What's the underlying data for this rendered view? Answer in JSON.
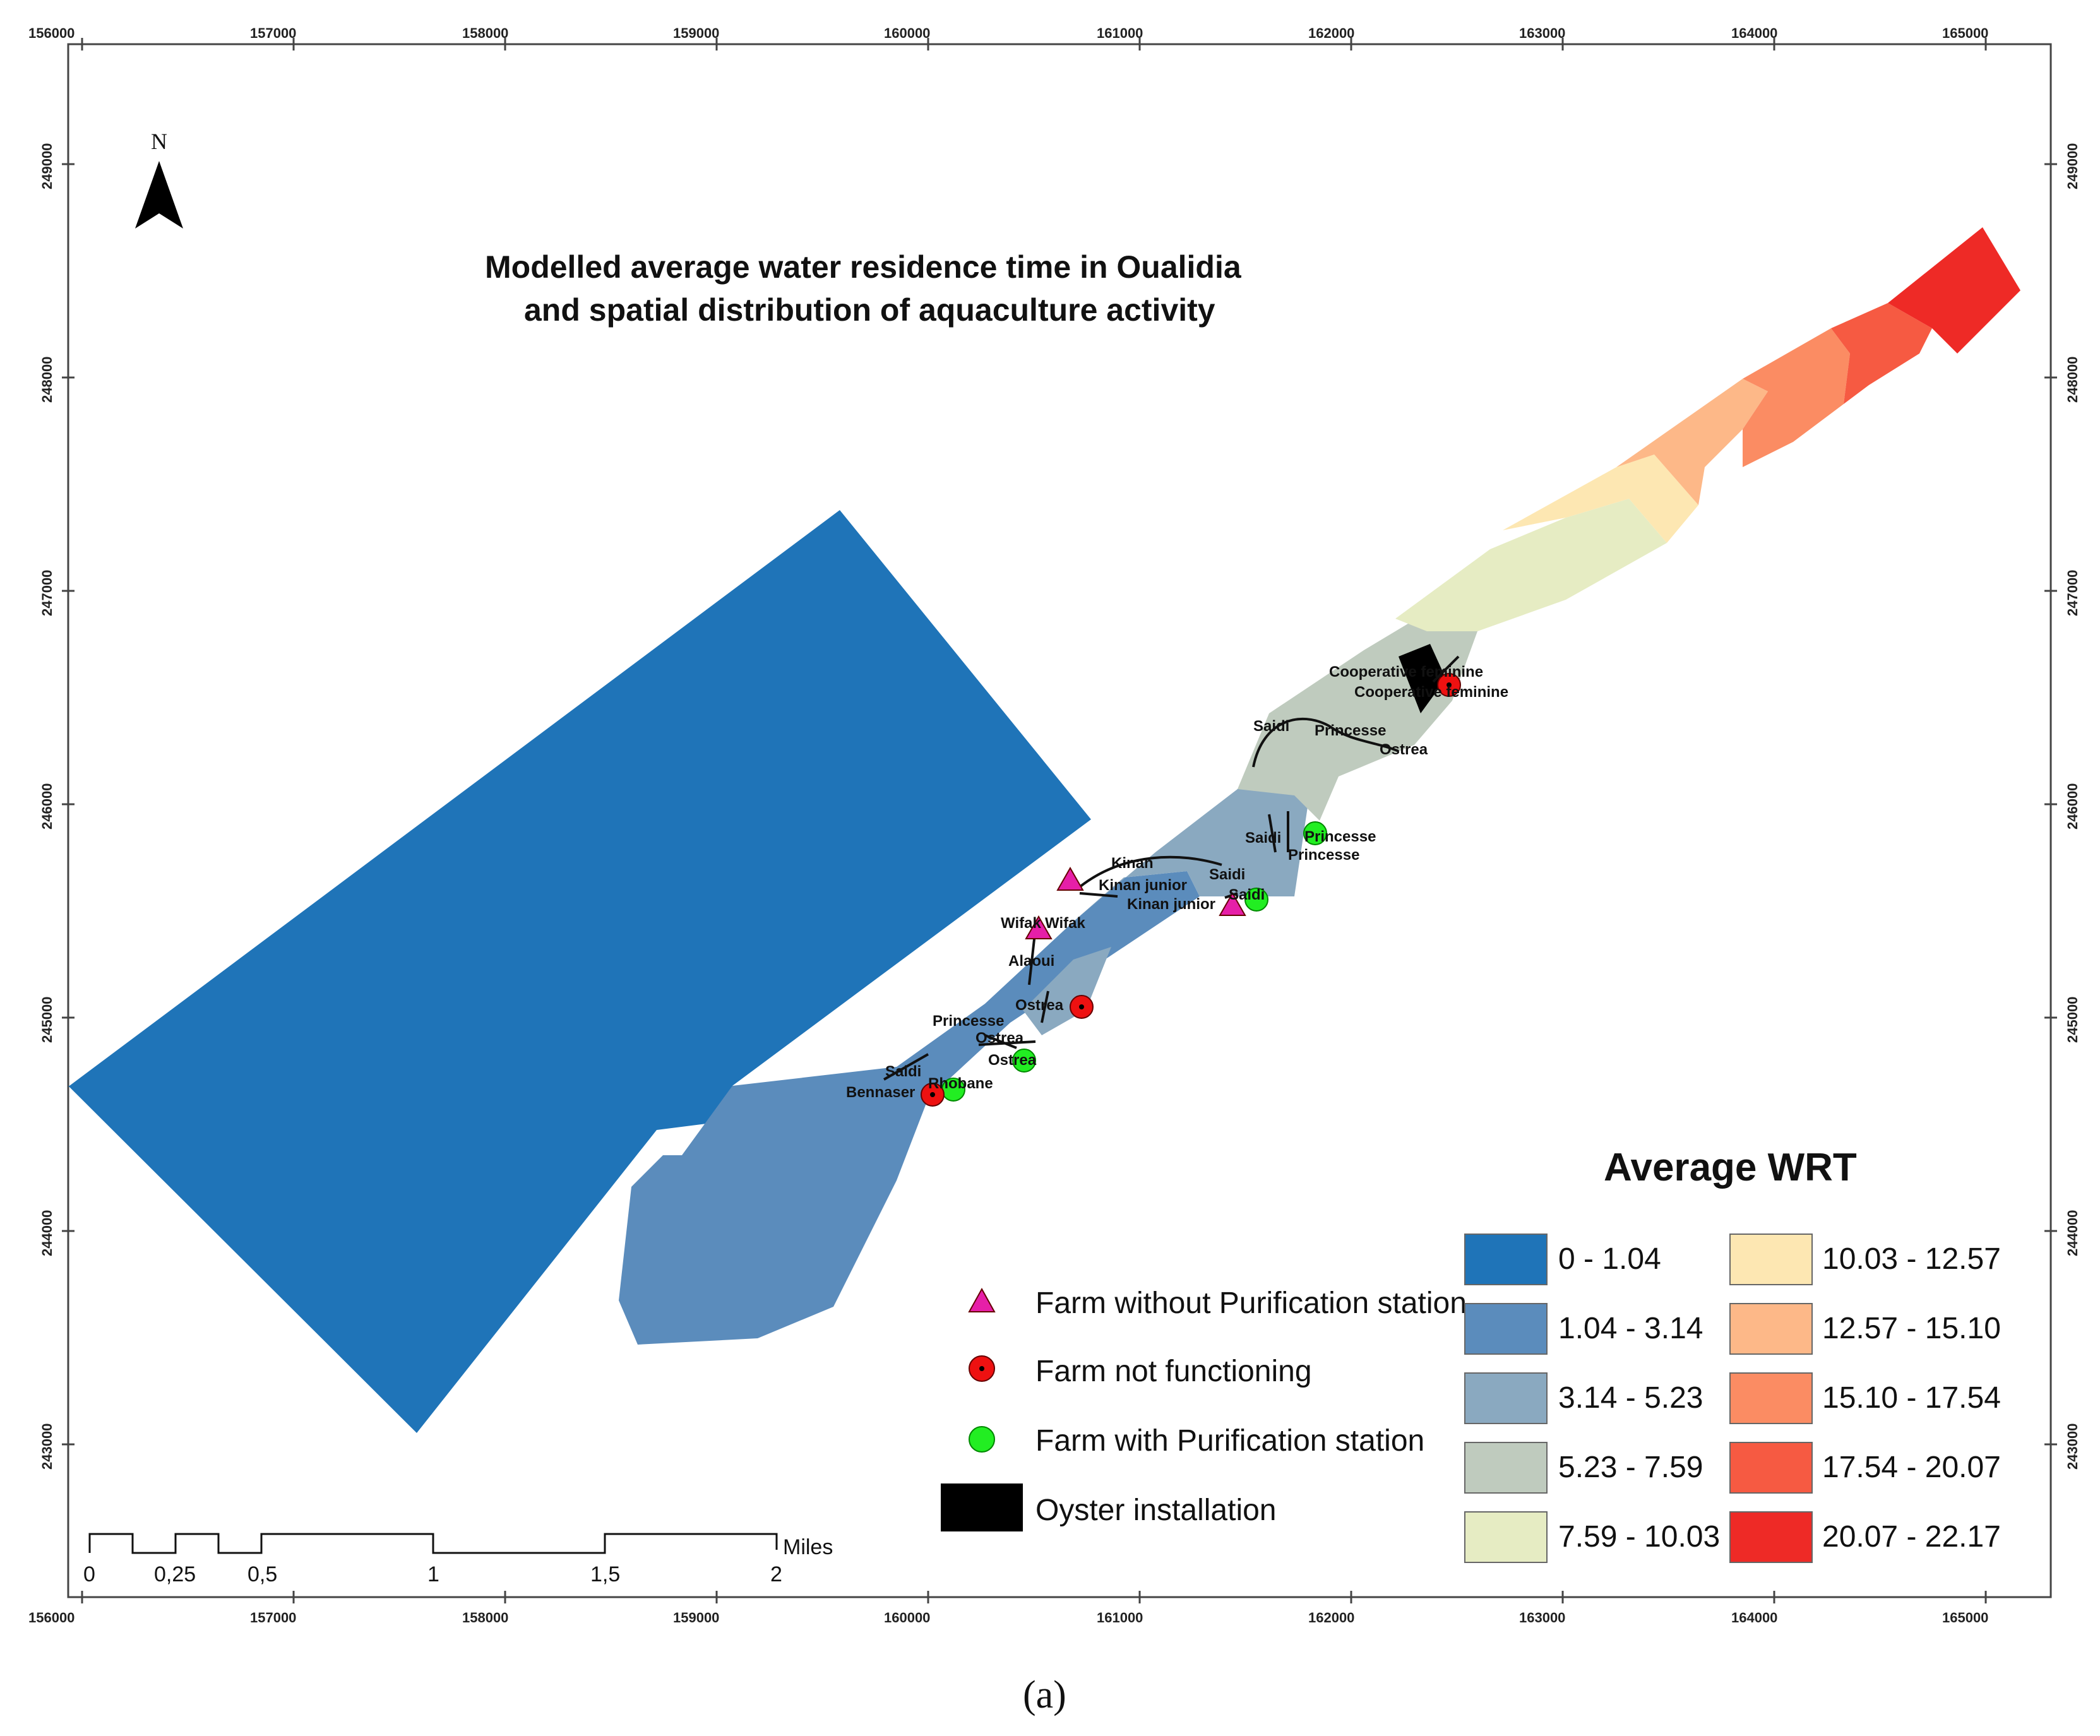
{
  "title": {
    "line1": "Modelled average water residence time in Oualidia",
    "line2": "and spatial distribution of aquaculture activity"
  },
  "north_arrow": {
    "label": "N"
  },
  "axes": {
    "x_ticks": [
      "156000",
      "157000",
      "158000",
      "159000",
      "160000",
      "161000",
      "162000",
      "163000",
      "164000",
      "165000"
    ],
    "y_ticks": [
      "249000",
      "248000",
      "247000",
      "246000",
      "245000",
      "244000",
      "243000"
    ],
    "tick_suffix": "000000"
  },
  "farms": [
    {
      "name": "Cooperative feminine",
      "type": "not_functioning"
    },
    {
      "name": "Saidi",
      "type": "none"
    },
    {
      "name": "Princesse",
      "type": "none"
    },
    {
      "name": "Ostrea",
      "type": "none"
    },
    {
      "name": "Princesse",
      "type": "with_purification"
    },
    {
      "name": "Kinan",
      "type": "none"
    },
    {
      "name": "Kinan junior",
      "type": "without_purification"
    },
    {
      "name": "Saidi",
      "type": "with_purification"
    },
    {
      "name": "Wifak",
      "type": "without_purification"
    },
    {
      "name": "Alaoui",
      "type": "none"
    },
    {
      "name": "Ostrea",
      "type": "not_functioning"
    },
    {
      "name": "Ostrea",
      "type": "with_purification"
    },
    {
      "name": "Bennaser",
      "type": "not_functioning"
    },
    {
      "name": "Rhobane",
      "type": "with_purification"
    }
  ],
  "farm_labels": {
    "coop1": "Cooperative feminine",
    "coop2": "Cooperative feminine",
    "saidi1": "Saidi",
    "princesse1": "Princesse",
    "ostrea1": "Ostrea",
    "saidi2": "Saidi",
    "princesse2": "Princesse",
    "princesse3": "Princesse",
    "kinan": "Kinan",
    "kinan_junior1": "Kinan junior",
    "saidi3": "Saidi",
    "kinan_junior2": "Kinan junior",
    "saidi4": "Saidi",
    "wifak1": "Wifak",
    "wifak2": "Wifak",
    "alaoui": "Alaoui",
    "ostrea2": "Ostrea",
    "princesse4": "Princesse",
    "ostrea3": "Ostrea",
    "ostrea4": "Ostrea",
    "saidi5": "Saidi",
    "bennaser": "Bennaser",
    "rhobane": "Rhobane"
  },
  "symbol_legend": [
    {
      "label": "Farm without Purification station",
      "symbol": "triangle",
      "color": "#e61fa8"
    },
    {
      "label": "Farm not functioning",
      "symbol": "red-dot",
      "color": "#ee1111"
    },
    {
      "label": "Farm with Purification station",
      "symbol": "green-dot",
      "color": "#22ee22"
    },
    {
      "label": "Oyster installation",
      "symbol": "black-rect",
      "color": "#000000"
    }
  ],
  "wrt_legend": {
    "title": "Average WRT",
    "classes": [
      {
        "range": "0 - 1.04",
        "color": "#1f74b8"
      },
      {
        "range": "1.04 - 3.14",
        "color": "#5b8cbc"
      },
      {
        "range": "3.14 - 5.23",
        "color": "#8aa9c0"
      },
      {
        "range": "5.23 - 7.59",
        "color": "#bfcbbe"
      },
      {
        "range": "7.59 - 10.03",
        "color": "#e6ecc3"
      },
      {
        "range": "10.03 - 12.57",
        "color": "#fde7b2"
      },
      {
        "range": "12.57 - 15.10",
        "color": "#fdb888"
      },
      {
        "range": "15.10 - 17.54",
        "color": "#fb8c63"
      },
      {
        "range": "17.54 - 20.07",
        "color": "#f65a42"
      },
      {
        "range": "20.07 - 22.17",
        "color": "#ee2a26"
      }
    ]
  },
  "scale_bar": {
    "labels": [
      "0",
      "0,25",
      "0,5",
      "1",
      "1,5",
      "2"
    ],
    "unit": "Miles"
  },
  "caption": "(a)"
}
